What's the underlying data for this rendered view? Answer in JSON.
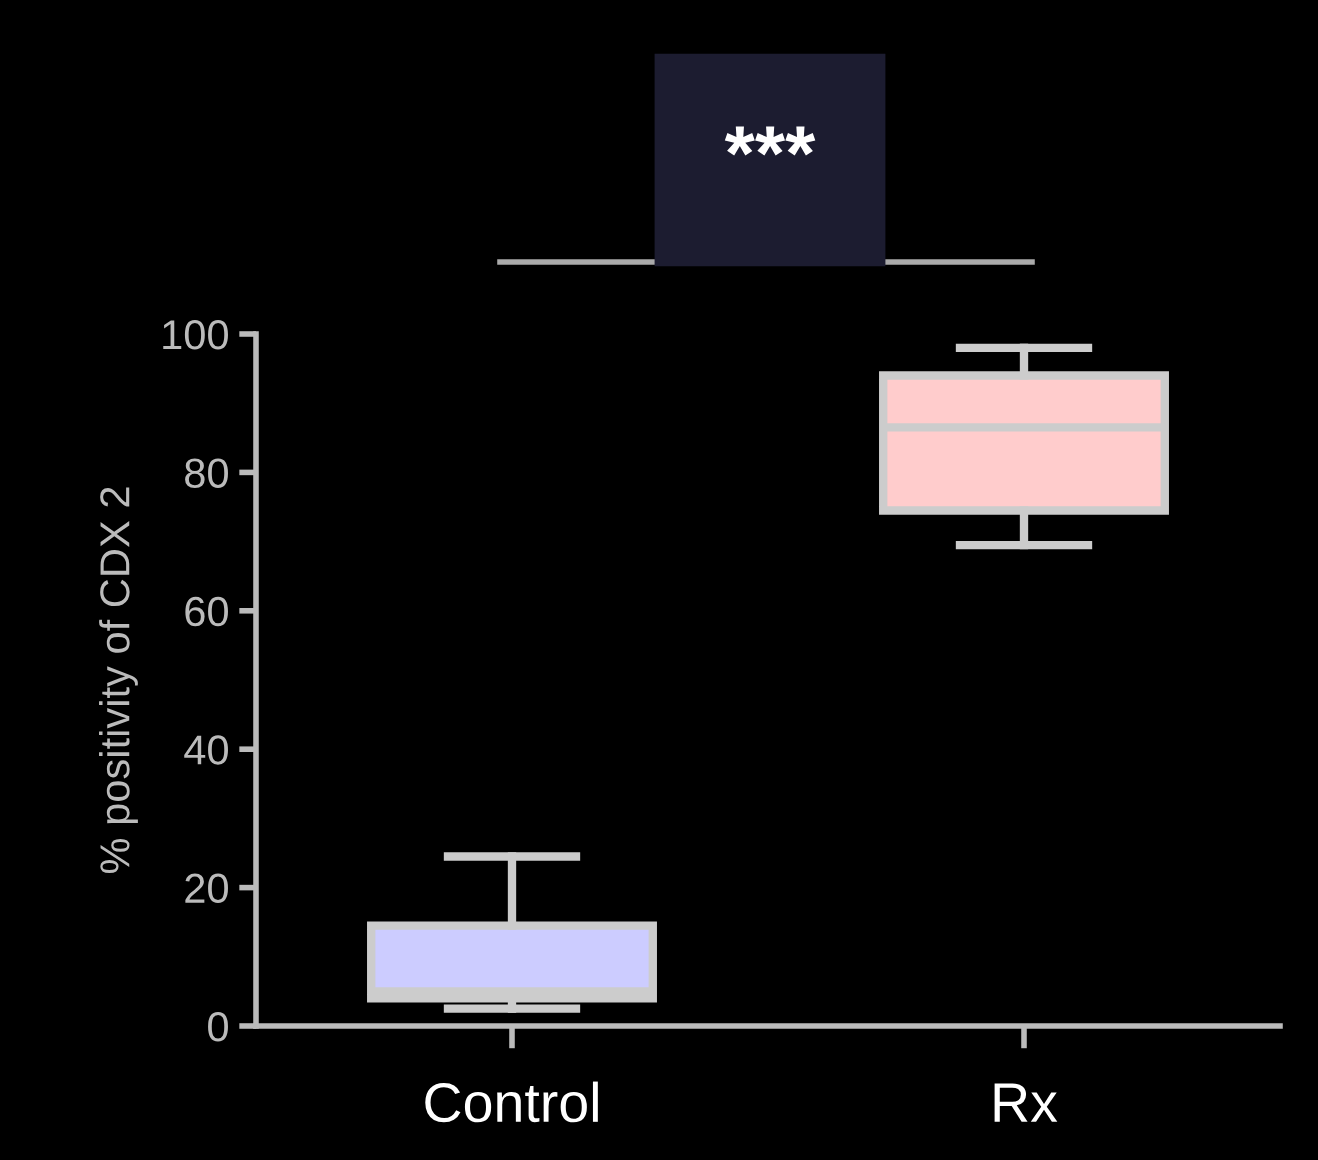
{
  "chart_data": {
    "type": "box",
    "ylabel": "% positivity of CDX 2",
    "categories": [
      "Control",
      "Rx"
    ],
    "series": [
      {
        "colors": [
          "#ccccff",
          "#ffcccc"
        ],
        "boxes": [
          {
            "low": 2.5,
            "q1": 4,
            "median": 5,
            "q3": 14.5,
            "high": 24.5
          },
          {
            "low": 69.5,
            "q1": 74.5,
            "median": 86.5,
            "q3": 94,
            "high": 98
          }
        ]
      }
    ],
    "ylim": [
      0,
      100
    ],
    "yticks": [
      0,
      20,
      40,
      60,
      80,
      100
    ],
    "grid": false,
    "annotations": [
      "***"
    ]
  }
}
